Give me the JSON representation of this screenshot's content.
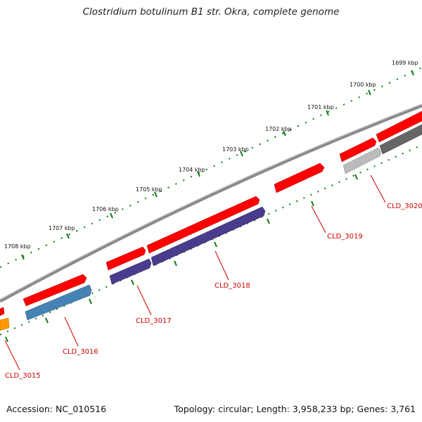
{
  "title": "Clostridium botulinum B1 str. Okra, complete genome",
  "footer": {
    "accession": "Accession: NC_010516",
    "topology": "Topology: circular; Length: 3,958,233 bp; Genes: 3,761"
  },
  "ticks": [
    "1699 kbp",
    "1700 kbp",
    "1701 kbp",
    "1702 kbp",
    "1703 kbp",
    "1704 kbp",
    "1705 kbp",
    "1706 kbp",
    "1707 kbp",
    "1708 kbp"
  ],
  "genes": [
    "CLD_3015",
    "CLD_3016",
    "CLD_3017",
    "CLD_3018",
    "CLD_3019",
    "CLD_3020"
  ],
  "colors": {
    "red": "#ff0000",
    "dark_red": "#b30000",
    "purple": "#4a3c8c",
    "blue": "#4682b4",
    "grey": "#666666",
    "light_grey": "#bbbbbb",
    "orange": "#ff9900",
    "tick_green": "#117711",
    "label_red": "#cc0000"
  }
}
